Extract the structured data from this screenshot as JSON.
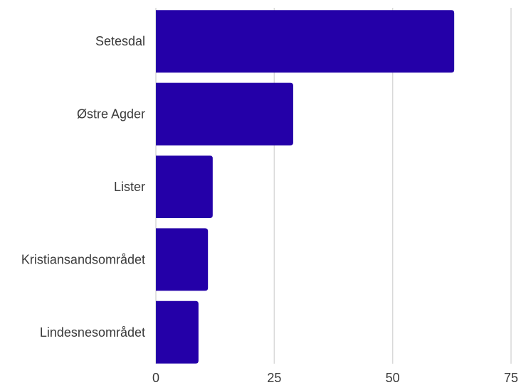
{
  "chart_data": {
    "type": "bar",
    "orientation": "horizontal",
    "categories": [
      "Setesdal",
      "Østre Agder",
      "Lister",
      "Kristiansandsområdet",
      "Lindesnesområdet"
    ],
    "values": [
      63,
      29,
      12,
      11,
      9
    ],
    "xlim": [
      0,
      75
    ],
    "xticks": [
      0,
      25,
      50,
      75
    ],
    "grid": true,
    "bar_color": "#2400a8",
    "title": "",
    "xlabel": "",
    "ylabel": ""
  }
}
